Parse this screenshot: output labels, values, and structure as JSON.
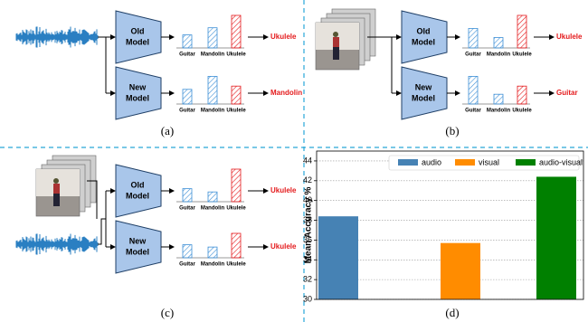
{
  "panels": [
    {
      "label": "(a)",
      "rows": [
        {
          "model": [
            "Old",
            "Model"
          ],
          "categories": [
            "Guitar",
            "Mandolin",
            "Ukulele"
          ],
          "scores": [
            0.4,
            0.62,
            1.0
          ],
          "prediction": "Ukulele"
        },
        {
          "model": [
            "New",
            "Model"
          ],
          "categories": [
            "Guitar",
            "Mandolin",
            "Ukulele"
          ],
          "scores": [
            0.45,
            0.85,
            0.55
          ],
          "prediction": "Mandolin"
        }
      ]
    },
    {
      "label": "(b)",
      "rows": [
        {
          "model": [
            "Old",
            "Model"
          ],
          "categories": [
            "Guitar",
            "Mandolin",
            "Ukulele"
          ],
          "scores": [
            0.6,
            0.32,
            1.0
          ],
          "prediction": "Ukulele"
        },
        {
          "model": [
            "New",
            "Model"
          ],
          "categories": [
            "Guitar",
            "Mandolin",
            "Ukulele"
          ],
          "scores": [
            0.85,
            0.3,
            0.55
          ],
          "prediction": "Guitar"
        }
      ]
    },
    {
      "label": "(c)",
      "rows": [
        {
          "model": [
            "Old",
            "Model"
          ],
          "categories": [
            "Guitar",
            "Mandolin",
            "Ukulele"
          ],
          "scores": [
            0.4,
            0.3,
            1.0
          ],
          "prediction": "Ukulele"
        },
        {
          "model": [
            "New",
            "Model"
          ],
          "categories": [
            "Guitar",
            "Mandolin",
            "Ukulele"
          ],
          "scores": [
            0.4,
            0.33,
            0.75
          ],
          "prediction": "Ukulele"
        }
      ]
    }
  ],
  "chart_data": {
    "type": "bar",
    "caption": "(d)",
    "y_label": "Mean Accuracy %",
    "series": [
      {
        "name": "audio",
        "color": "#4682b4",
        "values": [
          38.4
        ]
      },
      {
        "name": "visual",
        "color": "#ff8c00",
        "values": [
          35.7
        ]
      },
      {
        "name": "audio-visual",
        "color": "#008000",
        "values": [
          42.4
        ]
      }
    ],
    "ylim": [
      30,
      45
    ],
    "yticks": [
      30,
      32,
      34,
      36,
      38,
      40,
      42,
      44
    ],
    "grid": true,
    "legend": "top"
  }
}
